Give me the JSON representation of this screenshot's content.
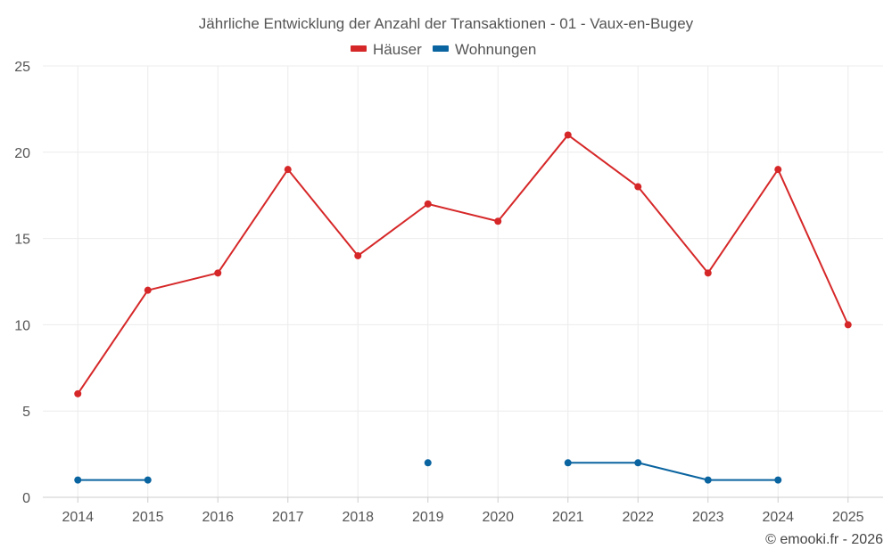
{
  "chart_data": {
    "type": "line",
    "title": "Jährliche Entwicklung der Anzahl der Transaktionen - 01 - Vaux-en-Bugey",
    "xlabel": "",
    "ylabel": "",
    "x": [
      "2014",
      "2015",
      "2016",
      "2017",
      "2018",
      "2019",
      "2020",
      "2021",
      "2022",
      "2023",
      "2024",
      "2025"
    ],
    "ylim": [
      0,
      25
    ],
    "yticks": [
      "0",
      "5",
      "10",
      "15",
      "20",
      "25"
    ],
    "grid": true,
    "legend_position": "top-center",
    "series": [
      {
        "name": "Häuser",
        "color": "#d62728",
        "values": [
          6,
          12,
          13,
          19,
          14,
          17,
          16,
          21,
          18,
          13,
          19,
          10
        ]
      },
      {
        "name": "Wohnungen",
        "color": "#0a64a0",
        "values": [
          1,
          1,
          null,
          null,
          null,
          2,
          null,
          2,
          2,
          1,
          1,
          null
        ]
      }
    ]
  },
  "credit": "© emooki.fr - 2026"
}
